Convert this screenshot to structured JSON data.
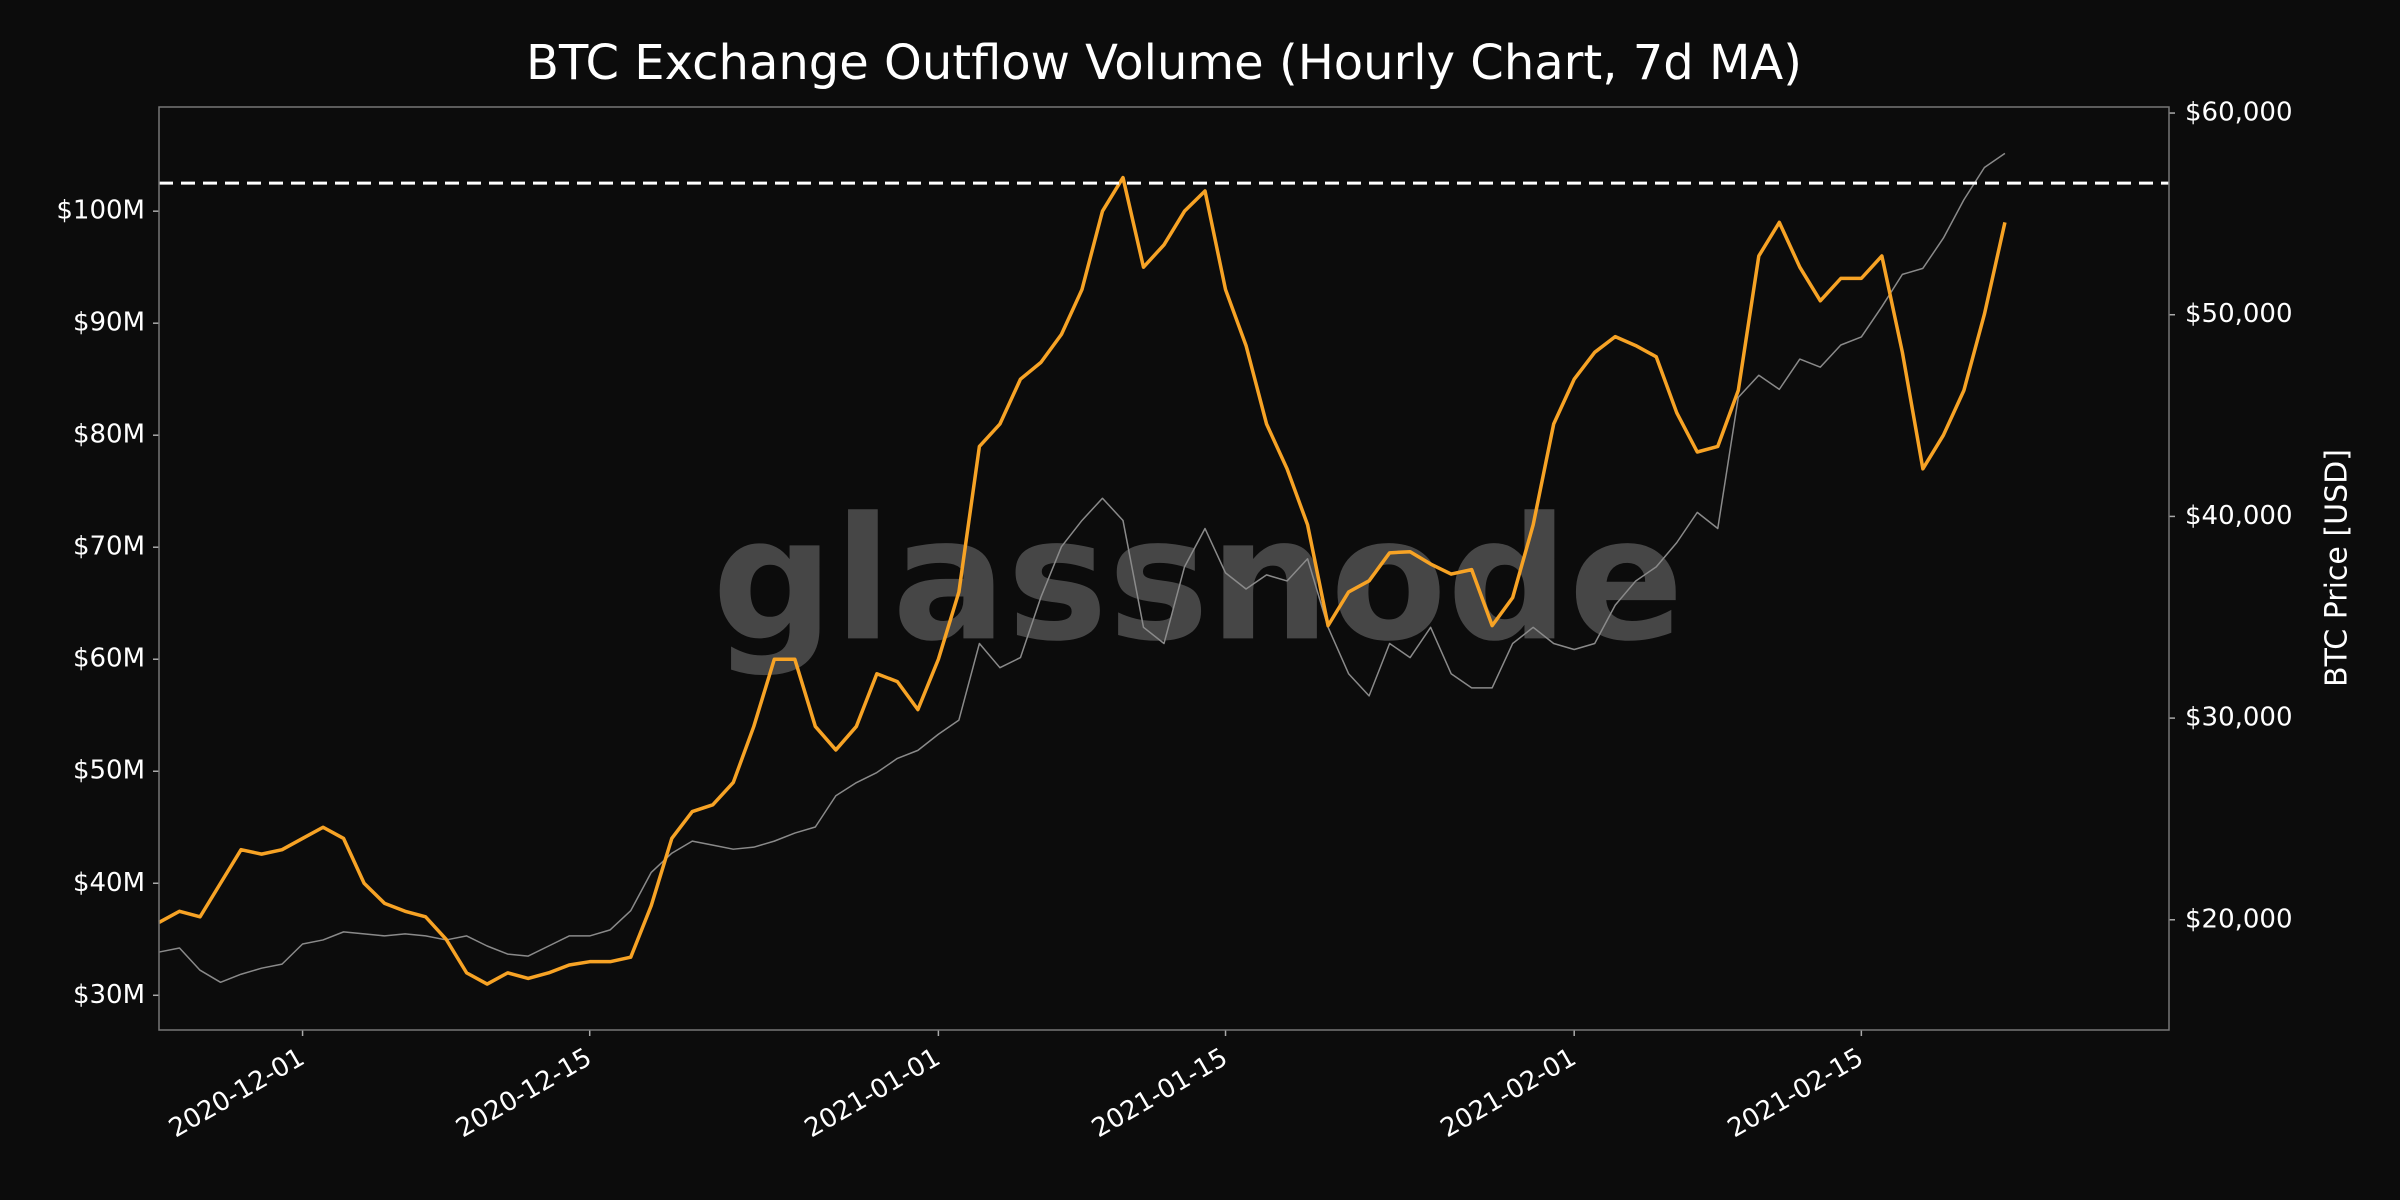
{
  "chart_data": {
    "type": "line",
    "title": "BTC Exchange Outflow Volume (Hourly Chart, 7d MA)",
    "y2label": "BTC Price [USD]",
    "watermark": "glassnode",
    "x": [
      "2020-11-24",
      "2020-11-25",
      "2020-11-26",
      "2020-11-27",
      "2020-11-28",
      "2020-11-29",
      "2020-11-30",
      "2020-12-01",
      "2020-12-02",
      "2020-12-03",
      "2020-12-04",
      "2020-12-05",
      "2020-12-06",
      "2020-12-07",
      "2020-12-08",
      "2020-12-09",
      "2020-12-10",
      "2020-12-11",
      "2020-12-12",
      "2020-12-13",
      "2020-12-14",
      "2020-12-15",
      "2020-12-16",
      "2020-12-17",
      "2020-12-18",
      "2020-12-19",
      "2020-12-20",
      "2020-12-21",
      "2020-12-22",
      "2020-12-23",
      "2020-12-24",
      "2020-12-25",
      "2020-12-26",
      "2020-12-27",
      "2020-12-28",
      "2020-12-29",
      "2020-12-30",
      "2020-12-31",
      "2021-01-01",
      "2021-01-02",
      "2021-01-03",
      "2021-01-04",
      "2021-01-05",
      "2021-01-06",
      "2021-01-07",
      "2021-01-08",
      "2021-01-09",
      "2021-01-10",
      "2021-01-11",
      "2021-01-12",
      "2021-01-13",
      "2021-01-14",
      "2021-01-15",
      "2021-01-16",
      "2021-01-17",
      "2021-01-18",
      "2021-01-19",
      "2021-01-20",
      "2021-01-21",
      "2021-01-22",
      "2021-01-23",
      "2021-01-24",
      "2021-01-25",
      "2021-01-26",
      "2021-01-27",
      "2021-01-28",
      "2021-01-29",
      "2021-01-30",
      "2021-01-31",
      "2021-02-01",
      "2021-02-02",
      "2021-02-03",
      "2021-02-04",
      "2021-02-05",
      "2021-02-06",
      "2021-02-07",
      "2021-02-08",
      "2021-02-09",
      "2021-02-10",
      "2021-02-11",
      "2021-02-12",
      "2021-02-13",
      "2021-02-14",
      "2021-02-15",
      "2021-02-16",
      "2021-02-17",
      "2021-02-18",
      "2021-02-19",
      "2021-02-20",
      "2021-02-21",
      "2021-02-22"
    ],
    "series": [
      {
        "color": "#f7a325",
        "axis": "y",
        "values": [
          36500000,
          37500000,
          37000000,
          40000000,
          43000000,
          42600000,
          43000000,
          44000000,
          45000000,
          44000000,
          40000000,
          38200000,
          37500000,
          37000000,
          35000000,
          32000000,
          31000000,
          32000000,
          31500000,
          32000000,
          32700000,
          33000000,
          33000000,
          33400000,
          38000000,
          44000000,
          46400000,
          47000000,
          49000000,
          54000000,
          60000000,
          60000000,
          54000000,
          51900000,
          54000000,
          58700000,
          58000000,
          55500000,
          60000000,
          66000000,
          79000000,
          81000000,
          85000000,
          86500000,
          89000000,
          93000000,
          100000000,
          103000000,
          95000000,
          97000000,
          100000000,
          101800000,
          93000000,
          88000000,
          81000000,
          77000000,
          72000000,
          63000000,
          66000000,
          67000000,
          69500000,
          69600000,
          68500000,
          67600000,
          68000000,
          63000000,
          65500000,
          72000000,
          81000000,
          85000000,
          87400000,
          88800000,
          88000000,
          87000000,
          82000000,
          78500000,
          79000000,
          84000000,
          96000000,
          99000000,
          95000000,
          92000000,
          94000000,
          94000000,
          96000000,
          87400000,
          77000000,
          80000000,
          84000000,
          90800000,
          99000000
        ]
      },
      {
        "color": "#8a8a8a",
        "axis": "y2",
        "values": [
          18400,
          18600,
          17500,
          16900,
          17300,
          17600,
          17800,
          18800,
          19000,
          19400,
          19300,
          19200,
          19300,
          19200,
          19000,
          19200,
          18700,
          18300,
          18200,
          18700,
          19200,
          19200,
          19500,
          20450,
          22350,
          23300,
          23900,
          23700,
          23500,
          23600,
          23900,
          24300,
          24600,
          26150,
          26800,
          27300,
          28000,
          28400,
          29200,
          29900,
          33700,
          32500,
          33000,
          36000,
          38500,
          39800,
          40900,
          39800,
          34500,
          33700,
          37500,
          39400,
          37200,
          36400,
          37100,
          36800,
          37900,
          34500,
          32200,
          31100,
          33700,
          33000,
          34500,
          32200,
          31500,
          31500,
          33700,
          34500,
          33700,
          33400,
          33700,
          35600,
          36800,
          37500,
          38700,
          40200,
          39400,
          45900,
          47000,
          46300,
          47800,
          47400,
          48500,
          48900,
          50400,
          52000,
          52300,
          53800,
          55700,
          57300,
          58000
        ]
      }
    ],
    "reference_line": {
      "value": 102500000,
      "color": "#ffffff"
    },
    "xlim": [
      "2020-11-24",
      "2021-03-02"
    ],
    "xticks": [
      "2020-12-01",
      "2020-12-15",
      "2021-01-01",
      "2021-01-15",
      "2021-02-01",
      "2021-02-15"
    ],
    "ylim": [
      26900000,
      109300000
    ],
    "yticks": [
      {
        "value": 30000000,
        "label": "$30M"
      },
      {
        "value": 40000000,
        "label": "$40M"
      },
      {
        "value": 50000000,
        "label": "$50M"
      },
      {
        "value": 60000000,
        "label": "$60M"
      },
      {
        "value": 70000000,
        "label": "$70M"
      },
      {
        "value": 80000000,
        "label": "$80M"
      },
      {
        "value": 90000000,
        "label": "$90M"
      },
      {
        "value": 100000000,
        "label": "$100M"
      }
    ],
    "y2lim": [
      14535,
      60300
    ],
    "y2ticks": [
      {
        "value": 20000,
        "label": "$20,000"
      },
      {
        "value": 30000,
        "label": "$30,000"
      },
      {
        "value": 40000,
        "label": "$40,000"
      },
      {
        "value": 50000,
        "label": "$50,000"
      },
      {
        "value": 60000,
        "label": "$60,000"
      }
    ]
  }
}
